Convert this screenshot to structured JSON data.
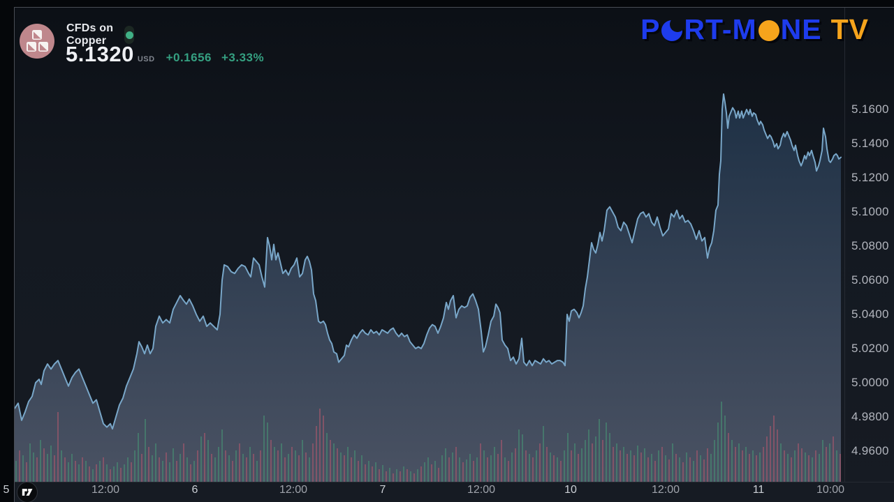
{
  "header": {
    "title": "CFDs on Copper",
    "price": "5.1320",
    "currency": "USD",
    "change_abs": "+0.1656",
    "change_pct": "+3.33%",
    "market_status": "open"
  },
  "brand": {
    "seg1": "P",
    "seg2": "RT-M",
    "seg3": "NE",
    "seg4": "TV",
    "blue": "#1e3ced",
    "orange": "#f6a41c"
  },
  "icons": {
    "symbol_icon": "copper-ingots-on-rose-circle",
    "status_icon": "green-dot",
    "brand_o1": "blue-crescent-moon",
    "brand_o2": "orange-circle",
    "watermark": "tradingview-logo"
  },
  "colors": {
    "background": "#141921",
    "frame": "#494d55",
    "separator": "#262a32",
    "line": "#79a7c9",
    "fill_top": "#1b2e43",
    "fill_bottom": "#4a5263",
    "volume_up": "#47816f",
    "volume_down": "#92566a",
    "axis_text": "#b2b5bd",
    "green": "#35a081",
    "icon_bg": "#bf878c"
  },
  "axes": {
    "price_labels": [
      "5.1600",
      "5.1400",
      "5.1200",
      "5.1000",
      "5.0800",
      "5.0600",
      "5.0400",
      "5.0200",
      "5.0000",
      "4.9800",
      "4.9600"
    ],
    "time_labels": [
      {
        "label": "5",
        "x": 8,
        "day": true
      },
      {
        "label": "12:00",
        "x": 150,
        "day": false
      },
      {
        "label": "6",
        "x": 278,
        "day": true
      },
      {
        "label": "12:00",
        "x": 419,
        "day": false
      },
      {
        "label": "7",
        "x": 547,
        "day": true
      },
      {
        "label": "12:00",
        "x": 688,
        "day": false
      },
      {
        "label": "10",
        "x": 816,
        "day": true
      },
      {
        "label": "12:00",
        "x": 952,
        "day": false
      },
      {
        "label": "11",
        "x": 1085,
        "day": true
      },
      {
        "label": "10:00",
        "x": 1188,
        "day": false
      }
    ]
  },
  "chart_data": {
    "type": "area",
    "title": "CFDs on Copper",
    "ylabel": "USD",
    "grid": false,
    "legend_position": "none",
    "ylim": [
      4.942,
      5.2196
    ],
    "y_tick_step": 0.02,
    "x_range_days": [
      "5",
      "6",
      "7",
      "10",
      "11"
    ],
    "last_price": 5.132,
    "session_high": 5.169,
    "session_low": 4.973,
    "plot": {
      "x_left": 20,
      "x_right": 1205,
      "y_top": 10,
      "y_bottom": 690
    },
    "points": [
      [
        20,
        4.985
      ],
      [
        25,
        4.988
      ],
      [
        30,
        4.978
      ],
      [
        35,
        4.983
      ],
      [
        40,
        4.989
      ],
      [
        45,
        4.992
      ],
      [
        50,
        5.0
      ],
      [
        55,
        5.002
      ],
      [
        58,
        4.999
      ],
      [
        62,
        5.007
      ],
      [
        67,
        5.011
      ],
      [
        72,
        5.008
      ],
      [
        77,
        5.011
      ],
      [
        82,
        5.013
      ],
      [
        87,
        5.008
      ],
      [
        92,
        5.003
      ],
      [
        97,
        4.998
      ],
      [
        102,
        5.003
      ],
      [
        107,
        5.006
      ],
      [
        112,
        5.008
      ],
      [
        117,
        5.003
      ],
      [
        122,
        4.998
      ],
      [
        127,
        4.993
      ],
      [
        132,
        4.988
      ],
      [
        137,
        4.99
      ],
      [
        142,
        4.983
      ],
      [
        147,
        4.976
      ],
      [
        152,
        4.974
      ],
      [
        157,
        4.976
      ],
      [
        160,
        4.973
      ],
      [
        165,
        4.98
      ],
      [
        170,
        4.987
      ],
      [
        175,
        4.991
      ],
      [
        180,
        4.998
      ],
      [
        185,
        5.003
      ],
      [
        190,
        5.008
      ],
      [
        195,
        5.017
      ],
      [
        198,
        5.024
      ],
      [
        202,
        5.021
      ],
      [
        206,
        5.017
      ],
      [
        210,
        5.022
      ],
      [
        214,
        5.017
      ],
      [
        218,
        5.02
      ],
      [
        222,
        5.033
      ],
      [
        227,
        5.039
      ],
      [
        232,
        5.035
      ],
      [
        237,
        5.037
      ],
      [
        242,
        5.035
      ],
      [
        247,
        5.043
      ],
      [
        252,
        5.047
      ],
      [
        257,
        5.051
      ],
      [
        262,
        5.048
      ],
      [
        266,
        5.046
      ],
      [
        270,
        5.049
      ],
      [
        275,
        5.045
      ],
      [
        280,
        5.04
      ],
      [
        285,
        5.036
      ],
      [
        290,
        5.039
      ],
      [
        295,
        5.033
      ],
      [
        300,
        5.035
      ],
      [
        305,
        5.033
      ],
      [
        310,
        5.031
      ],
      [
        314,
        5.04
      ],
      [
        317,
        5.06
      ],
      [
        320,
        5.069
      ],
      [
        325,
        5.068
      ],
      [
        330,
        5.065
      ],
      [
        335,
        5.064
      ],
      [
        340,
        5.067
      ],
      [
        345,
        5.069
      ],
      [
        350,
        5.068
      ],
      [
        355,
        5.064
      ],
      [
        358,
        5.062
      ],
      [
        362,
        5.073
      ],
      [
        366,
        5.071
      ],
      [
        370,
        5.069
      ],
      [
        374,
        5.062
      ],
      [
        378,
        5.056
      ],
      [
        382,
        5.085
      ],
      [
        385,
        5.08
      ],
      [
        388,
        5.072
      ],
      [
        391,
        5.081
      ],
      [
        394,
        5.072
      ],
      [
        397,
        5.076
      ],
      [
        400,
        5.071
      ],
      [
        404,
        5.064
      ],
      [
        408,
        5.066
      ],
      [
        412,
        5.063
      ],
      [
        416,
        5.067
      ],
      [
        420,
        5.069
      ],
      [
        424,
        5.073
      ],
      [
        428,
        5.062
      ],
      [
        432,
        5.064
      ],
      [
        436,
        5.072
      ],
      [
        439,
        5.074
      ],
      [
        442,
        5.071
      ],
      [
        445,
        5.066
      ],
      [
        448,
        5.052
      ],
      [
        451,
        5.048
      ],
      [
        455,
        5.036
      ],
      [
        458,
        5.035
      ],
      [
        462,
        5.036
      ],
      [
        465,
        5.034
      ],
      [
        468,
        5.029
      ],
      [
        471,
        5.025
      ],
      [
        474,
        5.023
      ],
      [
        477,
        5.018
      ],
      [
        481,
        5.017
      ],
      [
        484,
        5.012
      ],
      [
        488,
        5.014
      ],
      [
        492,
        5.016
      ],
      [
        495,
        5.022
      ],
      [
        498,
        5.021
      ],
      [
        502,
        5.025
      ],
      [
        506,
        5.028
      ],
      [
        510,
        5.026
      ],
      [
        514,
        5.029
      ],
      [
        518,
        5.031
      ],
      [
        522,
        5.029
      ],
      [
        526,
        5.028
      ],
      [
        530,
        5.031
      ],
      [
        534,
        5.029
      ],
      [
        538,
        5.03
      ],
      [
        542,
        5.028
      ],
      [
        546,
        5.031
      ],
      [
        550,
        5.03
      ],
      [
        554,
        5.029
      ],
      [
        558,
        5.031
      ],
      [
        562,
        5.032
      ],
      [
        566,
        5.029
      ],
      [
        570,
        5.027
      ],
      [
        574,
        5.029
      ],
      [
        578,
        5.027
      ],
      [
        582,
        5.028
      ],
      [
        586,
        5.024
      ],
      [
        590,
        5.022
      ],
      [
        594,
        5.02
      ],
      [
        598,
        5.021
      ],
      [
        602,
        5.02
      ],
      [
        606,
        5.023
      ],
      [
        610,
        5.028
      ],
      [
        614,
        5.032
      ],
      [
        618,
        5.034
      ],
      [
        622,
        5.033
      ],
      [
        626,
        5.029
      ],
      [
        630,
        5.033
      ],
      [
        634,
        5.038
      ],
      [
        638,
        5.047
      ],
      [
        641,
        5.043
      ],
      [
        644,
        5.048
      ],
      [
        648,
        5.051
      ],
      [
        652,
        5.038
      ],
      [
        656,
        5.043
      ],
      [
        660,
        5.045
      ],
      [
        664,
        5.044
      ],
      [
        668,
        5.045
      ],
      [
        672,
        5.05
      ],
      [
        676,
        5.052
      ],
      [
        680,
        5.048
      ],
      [
        684,
        5.043
      ],
      [
        688,
        5.03
      ],
      [
        691,
        5.018
      ],
      [
        694,
        5.021
      ],
      [
        698,
        5.028
      ],
      [
        702,
        5.036
      ],
      [
        706,
        5.039
      ],
      [
        709,
        5.046
      ],
      [
        712,
        5.044
      ],
      [
        715,
        5.041
      ],
      [
        718,
        5.025
      ],
      [
        722,
        5.022
      ],
      [
        726,
        5.02
      ],
      [
        730,
        5.013
      ],
      [
        734,
        5.015
      ],
      [
        738,
        5.011
      ],
      [
        742,
        5.014
      ],
      [
        746,
        5.026
      ],
      [
        749,
        5.012
      ],
      [
        753,
        5.01
      ],
      [
        757,
        5.013
      ],
      [
        761,
        5.01
      ],
      [
        765,
        5.013
      ],
      [
        769,
        5.012
      ],
      [
        773,
        5.011
      ],
      [
        777,
        5.014
      ],
      [
        781,
        5.012
      ],
      [
        785,
        5.013
      ],
      [
        789,
        5.011
      ],
      [
        793,
        5.012
      ],
      [
        797,
        5.013
      ],
      [
        801,
        5.013
      ],
      [
        805,
        5.012
      ],
      [
        808,
        5.01
      ],
      [
        811,
        5.04
      ],
      [
        814,
        5.036
      ],
      [
        817,
        5.042
      ],
      [
        821,
        5.043
      ],
      [
        825,
        5.041
      ],
      [
        828,
        5.038
      ],
      [
        831,
        5.041
      ],
      [
        834,
        5.045
      ],
      [
        837,
        5.055
      ],
      [
        840,
        5.062
      ],
      [
        843,
        5.072
      ],
      [
        846,
        5.082
      ],
      [
        849,
        5.078
      ],
      [
        852,
        5.076
      ],
      [
        855,
        5.081
      ],
      [
        858,
        5.088
      ],
      [
        861,
        5.083
      ],
      [
        864,
        5.089
      ],
      [
        868,
        5.101
      ],
      [
        872,
        5.103
      ],
      [
        876,
        5.1
      ],
      [
        880,
        5.097
      ],
      [
        884,
        5.091
      ],
      [
        888,
        5.089
      ],
      [
        892,
        5.094
      ],
      [
        896,
        5.092
      ],
      [
        900,
        5.087
      ],
      [
        904,
        5.082
      ],
      [
        908,
        5.089
      ],
      [
        912,
        5.096
      ],
      [
        916,
        5.099
      ],
      [
        920,
        5.1
      ],
      [
        924,
        5.097
      ],
      [
        928,
        5.099
      ],
      [
        932,
        5.094
      ],
      [
        936,
        5.092
      ],
      [
        940,
        5.097
      ],
      [
        944,
        5.091
      ],
      [
        948,
        5.086
      ],
      [
        952,
        5.088
      ],
      [
        956,
        5.09
      ],
      [
        960,
        5.099
      ],
      [
        964,
        5.097
      ],
      [
        968,
        5.101
      ],
      [
        972,
        5.096
      ],
      [
        976,
        5.098
      ],
      [
        980,
        5.094
      ],
      [
        984,
        5.095
      ],
      [
        988,
        5.093
      ],
      [
        992,
        5.089
      ],
      [
        996,
        5.084
      ],
      [
        1000,
        5.089
      ],
      [
        1004,
        5.083
      ],
      [
        1008,
        5.085
      ],
      [
        1012,
        5.073
      ],
      [
        1015,
        5.079
      ],
      [
        1018,
        5.082
      ],
      [
        1021,
        5.089
      ],
      [
        1024,
        5.101
      ],
      [
        1027,
        5.104
      ],
      [
        1029,
        5.122
      ],
      [
        1031,
        5.13
      ],
      [
        1033,
        5.16
      ],
      [
        1035,
        5.169
      ],
      [
        1037,
        5.164
      ],
      [
        1039,
        5.158
      ],
      [
        1041,
        5.149
      ],
      [
        1043,
        5.156
      ],
      [
        1046,
        5.159
      ],
      [
        1048,
        5.161
      ],
      [
        1051,
        5.159
      ],
      [
        1053,
        5.155
      ],
      [
        1056,
        5.159
      ],
      [
        1058,
        5.155
      ],
      [
        1061,
        5.159
      ],
      [
        1063,
        5.155
      ],
      [
        1066,
        5.158
      ],
      [
        1068,
        5.16
      ],
      [
        1071,
        5.157
      ],
      [
        1073,
        5.16
      ],
      [
        1076,
        5.156
      ],
      [
        1078,
        5.158
      ],
      [
        1081,
        5.157
      ],
      [
        1083,
        5.154
      ],
      [
        1086,
        5.151
      ],
      [
        1088,
        5.153
      ],
      [
        1091,
        5.151
      ],
      [
        1093,
        5.148
      ],
      [
        1096,
        5.145
      ],
      [
        1098,
        5.143
      ],
      [
        1101,
        5.145
      ],
      [
        1103,
        5.144
      ],
      [
        1106,
        5.141
      ],
      [
        1108,
        5.138
      ],
      [
        1111,
        5.14
      ],
      [
        1113,
        5.137
      ],
      [
        1116,
        5.139
      ],
      [
        1118,
        5.143
      ],
      [
        1121,
        5.146
      ],
      [
        1123,
        5.144
      ],
      [
        1126,
        5.147
      ],
      [
        1128,
        5.145
      ],
      [
        1131,
        5.142
      ],
      [
        1133,
        5.139
      ],
      [
        1136,
        5.136
      ],
      [
        1138,
        5.139
      ],
      [
        1141,
        5.133
      ],
      [
        1143,
        5.13
      ],
      [
        1146,
        5.127
      ],
      [
        1148,
        5.129
      ],
      [
        1151,
        5.133
      ],
      [
        1153,
        5.131
      ],
      [
        1156,
        5.135
      ],
      [
        1158,
        5.133
      ],
      [
        1161,
        5.136
      ],
      [
        1163,
        5.133
      ],
      [
        1166,
        5.129
      ],
      [
        1168,
        5.124
      ],
      [
        1171,
        5.127
      ],
      [
        1173,
        5.13
      ],
      [
        1176,
        5.136
      ],
      [
        1178,
        5.149
      ],
      [
        1181,
        5.144
      ],
      [
        1183,
        5.137
      ],
      [
        1186,
        5.13
      ],
      [
        1188,
        5.129
      ],
      [
        1191,
        5.131
      ],
      [
        1193,
        5.133
      ],
      [
        1196,
        5.134
      ],
      [
        1198,
        5.133
      ],
      [
        1200,
        5.131
      ],
      [
        1203,
        5.132
      ]
    ],
    "volume": {
      "x_start": 22,
      "x_step": 5,
      "baseline_y": 690,
      "up_color": "#47816f",
      "down_color": "#92566a",
      "bars": [
        30,
        -45,
        38,
        -28,
        55,
        42,
        -35,
        60,
        -48,
        40,
        52,
        -38,
        -100,
        45,
        -35,
        28,
        40,
        -30,
        25,
        -35,
        30,
        -22,
        18,
        -25,
        30,
        -35,
        25,
        -18,
        22,
        28,
        -20,
        25,
        35,
        -28,
        45,
        70,
        -40,
        90,
        -50,
        38,
        55,
        -35,
        30,
        -42,
        28,
        48,
        -30,
        40,
        -55,
        35,
        -25,
        30,
        -45,
        65,
        -70,
        60,
        -40,
        35,
        50,
        75,
        -45,
        38,
        -30,
        45,
        -55,
        40,
        -35,
        50,
        -40,
        30,
        -45,
        95,
        85,
        -60,
        50,
        -45,
        55,
        -35,
        40,
        -50,
        45,
        -38,
        60,
        -42,
        35,
        -55,
        -80,
        -105,
        -95,
        70,
        -60,
        55,
        -48,
        42,
        -38,
        50,
        -35,
        45,
        -30,
        38,
        -25,
        30,
        -22,
        28,
        -18,
        24,
        -15,
        20,
        -12,
        18,
        -15,
        22,
        -18,
        15,
        -12,
        18,
        -22,
        28,
        35,
        -25,
        30,
        -20,
        38,
        48,
        -35,
        42,
        -50,
        35,
        -28,
        32,
        40,
        -30,
        35,
        -55,
        45,
        -35,
        38,
        50,
        -40,
        -60,
        35,
        -30,
        42,
        -48,
        75,
        68,
        -45,
        40,
        -35,
        45,
        -55,
        80,
        -50,
        42,
        -38,
        35,
        -30,
        45,
        70,
        -45,
        55,
        -40,
        48,
        60,
        75,
        -55,
        65,
        90,
        -60,
        85,
        70,
        -50,
        55,
        -45,
        50,
        -40,
        45,
        -38,
        52,
        -42,
        48,
        -35,
        40,
        -30,
        45,
        -50,
        38,
        -32,
        55,
        -40,
        35,
        -28,
        42,
        -35,
        30,
        -45,
        38,
        -32,
        -48,
        40,
        60,
        85,
        115,
        95,
        -70,
        60,
        -50,
        55,
        -45,
        50,
        -40,
        45,
        -38,
        42,
        -50,
        -65,
        -80,
        -95,
        -75,
        55,
        -45,
        40,
        -35,
        45,
        -55,
        -48,
        42,
        -38,
        35,
        -45,
        40,
        60,
        -50,
        55,
        -65,
        45,
        -40
      ]
    }
  }
}
